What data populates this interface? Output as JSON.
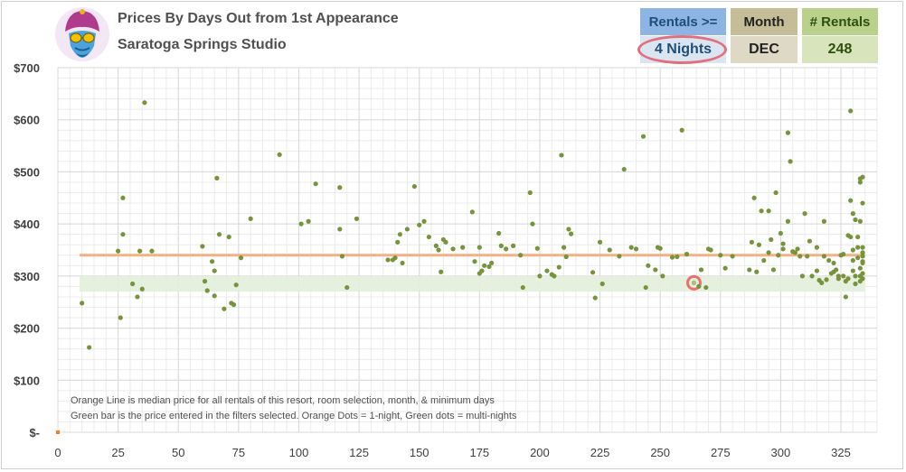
{
  "header": {
    "title": "Prices By Days Out from 1st Appearance",
    "subtitle": "Saratoga Springs Studio"
  },
  "filters": {
    "rentals_label": "Rentals >=",
    "rentals_value": "4 Nights",
    "month_label": "Month",
    "month_value": "DEC",
    "count_label": "# Rentals",
    "count_value": "248"
  },
  "notes": {
    "line1": "Orange Line is median price for all rentals of this resort, room selection, month, & minimum days",
    "line2": "Green bar is the price entered in the filters selected. Orange Dots = 1-night, Green dots = multi-nights"
  },
  "colors": {
    "median_line": "#f4b183",
    "green_band": "#e2efda",
    "dot_multi": "#77933c",
    "dot_single": "#ed7d31",
    "highlight_ring": "#f06e6e"
  },
  "chart_data": {
    "type": "scatter",
    "xlim": [
      0,
      340
    ],
    "ylim": [
      0,
      700
    ],
    "x_ticks": [
      0,
      25,
      50,
      75,
      100,
      125,
      150,
      175,
      200,
      225,
      250,
      275,
      300,
      325
    ],
    "y_ticks": [
      {
        "value": 0,
        "label": "$-"
      },
      {
        "value": 100,
        "label": "$100"
      },
      {
        "value": 200,
        "label": "$200"
      },
      {
        "value": 300,
        "label": "$300"
      },
      {
        "value": 400,
        "label": "$400"
      },
      {
        "value": 500,
        "label": "$500"
      },
      {
        "value": 600,
        "label": "$600"
      },
      {
        "value": 700,
        "label": "$700"
      }
    ],
    "grid": true,
    "median_price": 340,
    "price_band": [
      270,
      300
    ],
    "highlight_point": {
      "x": 264,
      "y": 287
    },
    "series": [
      {
        "kind": "multi-night",
        "points": [
          [
            10,
            248
          ],
          [
            13,
            163
          ],
          [
            25,
            348
          ],
          [
            26,
            220
          ],
          [
            27,
            380
          ],
          [
            27,
            450
          ],
          [
            31,
            285
          ],
          [
            33,
            260
          ],
          [
            34,
            348
          ],
          [
            35,
            275
          ],
          [
            36,
            633
          ],
          [
            39,
            348
          ],
          [
            60,
            357
          ],
          [
            61,
            290
          ],
          [
            62,
            272
          ],
          [
            64,
            328
          ],
          [
            65,
            310
          ],
          [
            65,
            262
          ],
          [
            66,
            488
          ],
          [
            67,
            380
          ],
          [
            69,
            237
          ],
          [
            71,
            375
          ],
          [
            72,
            248
          ],
          [
            73,
            245
          ],
          [
            74,
            283
          ],
          [
            76,
            335
          ],
          [
            80,
            410
          ],
          [
            92,
            533
          ],
          [
            101,
            400
          ],
          [
            104,
            405
          ],
          [
            107,
            477
          ],
          [
            117,
            470
          ],
          [
            117,
            390
          ],
          [
            118,
            338
          ],
          [
            120,
            278
          ],
          [
            124,
            410
          ],
          [
            137,
            331
          ],
          [
            139,
            331
          ],
          [
            140,
            335
          ],
          [
            141,
            365
          ],
          [
            142,
            380
          ],
          [
            143,
            325
          ],
          [
            145,
            390
          ],
          [
            148,
            472
          ],
          [
            150,
            398
          ],
          [
            152,
            405
          ],
          [
            154,
            375
          ],
          [
            157,
            358
          ],
          [
            158,
            350
          ],
          [
            159,
            308
          ],
          [
            160,
            370
          ],
          [
            161,
            365
          ],
          [
            164,
            352
          ],
          [
            168,
            355
          ],
          [
            172,
            423
          ],
          [
            173,
            328
          ],
          [
            175,
            355
          ],
          [
            175,
            305
          ],
          [
            176,
            310
          ],
          [
            177,
            320
          ],
          [
            179,
            318
          ],
          [
            180,
            325
          ],
          [
            183,
            382
          ],
          [
            184,
            358
          ],
          [
            186,
            352
          ],
          [
            189,
            358
          ],
          [
            192,
            340
          ],
          [
            193,
            278
          ],
          [
            196,
            460
          ],
          [
            197,
            400
          ],
          [
            199,
            353
          ],
          [
            200,
            300
          ],
          [
            203,
            310
          ],
          [
            205,
            303
          ],
          [
            206,
            300
          ],
          [
            208,
            317
          ],
          [
            209,
            532
          ],
          [
            210,
            355
          ],
          [
            211,
            337
          ],
          [
            212,
            390
          ],
          [
            213,
            381
          ],
          [
            222,
            307
          ],
          [
            223,
            258
          ],
          [
            225,
            365
          ],
          [
            226,
            285
          ],
          [
            229,
            350
          ],
          [
            233,
            338
          ],
          [
            235,
            505
          ],
          [
            238,
            355
          ],
          [
            240,
            352
          ],
          [
            243,
            568
          ],
          [
            244,
            278
          ],
          [
            245,
            320
          ],
          [
            248,
            312
          ],
          [
            249,
            355
          ],
          [
            250,
            353
          ],
          [
            251,
            300
          ],
          [
            255,
            336
          ],
          [
            257,
            337
          ],
          [
            259,
            580
          ],
          [
            261,
            342
          ],
          [
            264,
            287
          ],
          [
            266,
            280
          ],
          [
            267,
            312
          ],
          [
            269,
            278
          ],
          [
            270,
            352
          ],
          [
            271,
            350
          ],
          [
            275,
            340
          ],
          [
            277,
            315
          ],
          [
            280,
            338
          ],
          [
            287,
            312
          ],
          [
            288,
            365
          ],
          [
            289,
            450
          ],
          [
            290,
            308
          ],
          [
            291,
            360
          ],
          [
            292,
            425
          ],
          [
            293,
            330
          ],
          [
            295,
            425
          ],
          [
            295,
            345
          ],
          [
            296,
            370
          ],
          [
            297,
            312
          ],
          [
            298,
            460
          ],
          [
            299,
            340
          ],
          [
            300,
            382
          ],
          [
            301,
            362
          ],
          [
            301,
            352
          ],
          [
            303,
            575
          ],
          [
            303,
            405
          ],
          [
            304,
            520
          ],
          [
            305,
            347
          ],
          [
            306,
            345
          ],
          [
            307,
            352
          ],
          [
            308,
            338
          ],
          [
            309,
            300
          ],
          [
            310,
            420
          ],
          [
            311,
            338
          ],
          [
            312,
            367
          ],
          [
            313,
            300
          ],
          [
            315,
            355
          ],
          [
            315,
            310
          ],
          [
            316,
            292
          ],
          [
            317,
            287
          ],
          [
            318,
            338
          ],
          [
            318,
            405
          ],
          [
            319,
            293
          ],
          [
            320,
            330
          ],
          [
            321,
            305
          ],
          [
            322,
            308
          ],
          [
            322,
            325
          ],
          [
            323,
            312
          ],
          [
            324,
            300
          ],
          [
            324,
            295
          ],
          [
            325,
            340
          ],
          [
            326,
            342
          ],
          [
            326,
            300
          ],
          [
            327,
            290
          ],
          [
            327,
            260
          ],
          [
            328,
            295
          ],
          [
            328,
            378
          ],
          [
            329,
            617
          ],
          [
            329,
            375
          ],
          [
            329,
            445
          ],
          [
            330,
            420
          ],
          [
            330,
            350
          ],
          [
            330,
            330
          ],
          [
            330,
            310
          ],
          [
            331,
            408
          ],
          [
            331,
            300
          ],
          [
            331,
            285
          ],
          [
            332,
            375
          ],
          [
            332,
            355
          ],
          [
            332,
            335
          ],
          [
            333,
            315
          ],
          [
            333,
            300
          ],
          [
            333,
            290
          ],
          [
            333,
            405
          ],
          [
            334,
            440
          ],
          [
            334,
            490
          ],
          [
            334,
            345
          ],
          [
            334,
            338
          ],
          [
            334,
            325
          ],
          [
            334,
            305
          ],
          [
            334,
            295
          ],
          [
            334,
            355
          ],
          [
            334,
            328
          ],
          [
            333,
            487
          ],
          [
            333,
            480
          ]
        ]
      },
      {
        "kind": "1-night",
        "points": [
          [
            0,
            0
          ]
        ]
      }
    ]
  }
}
